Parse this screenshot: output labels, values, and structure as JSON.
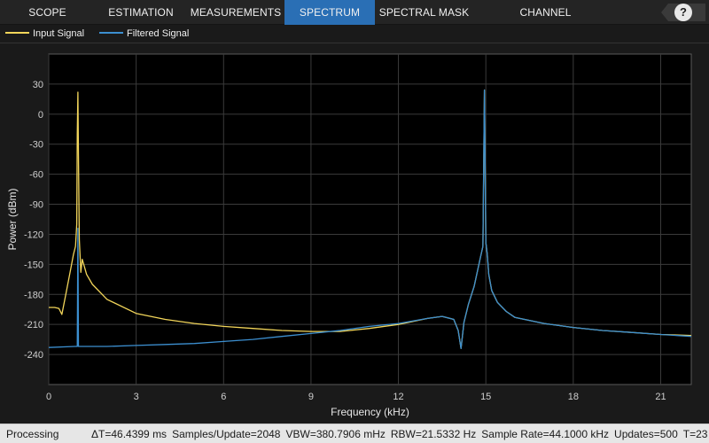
{
  "toolstrip": {
    "tabs": [
      {
        "label": "SCOPE",
        "active": false
      },
      {
        "label": "ESTIMATION",
        "active": false
      },
      {
        "label": "MEASUREMENTS",
        "active": false
      },
      {
        "label": "SPECTRUM",
        "active": true
      },
      {
        "label": "SPECTRAL MASK",
        "active": false
      },
      {
        "label": "CHANNEL MEASUREMENTS",
        "active": false
      }
    ],
    "help_label": "?",
    "active_tab_color": "#2a6fb5"
  },
  "legend": {
    "items": [
      {
        "label": "Input Signal",
        "color": "#f2d55a"
      },
      {
        "label": "Filtered Signal",
        "color": "#3c8fd0"
      }
    ]
  },
  "chart_data": {
    "type": "line",
    "xlabel": "Frequency (kHz)",
    "ylabel": "Power (dBm)",
    "xlim": [
      0,
      22.05
    ],
    "ylim": [
      -270,
      60
    ],
    "xticks": [
      0,
      3,
      6,
      9,
      12,
      15,
      18,
      21
    ],
    "yticks": [
      30,
      0,
      -30,
      -60,
      -90,
      -120,
      -150,
      -180,
      -210,
      -240
    ],
    "grid": true,
    "background": "#000000",
    "series": [
      {
        "name": "Input Signal",
        "color": "#f2d55a",
        "x": [
          0,
          0.2,
          0.35,
          0.45,
          0.6,
          0.75,
          0.85,
          0.92,
          0.96,
          0.98,
          1.0,
          1.02,
          1.05,
          1.1,
          1.15,
          1.2,
          1.3,
          1.5,
          2,
          3,
          4,
          5,
          6,
          7,
          8,
          9,
          10,
          11,
          12,
          13,
          13.5,
          13.9,
          14.05,
          14.15,
          14.25,
          14.4,
          14.6,
          14.8,
          14.9,
          14.95,
          15.0,
          15.05,
          15.1,
          15.2,
          15.4,
          15.7,
          16,
          17,
          18,
          19,
          20,
          21,
          22.05
        ],
        "y": [
          -193,
          -193,
          -194,
          -200,
          -178,
          -155,
          -140,
          -132,
          -110,
          -20,
          22,
          -40,
          -125,
          -158,
          -145,
          -150,
          -160,
          -170,
          -185,
          -199,
          -205,
          -209,
          -212,
          -214,
          -216,
          -217,
          -217,
          -214,
          -210,
          -204,
          -202,
          -205,
          -216,
          -234,
          -208,
          -190,
          -172,
          -145,
          -132,
          24,
          -128,
          -140,
          -160,
          -176,
          -188,
          -197,
          -203,
          -209,
          -213,
          -216,
          -218,
          -220,
          -221
        ]
      },
      {
        "name": "Filtered Signal",
        "color": "#3c8fd0",
        "x": [
          0,
          0.9,
          0.98,
          1.0,
          1.02,
          1.05,
          1.1,
          2,
          3,
          4,
          5,
          6,
          7,
          8,
          9,
          10,
          11,
          12,
          13,
          13.5,
          13.9,
          14.05,
          14.15,
          14.25,
          14.4,
          14.6,
          14.8,
          14.9,
          14.95,
          15.0,
          15.05,
          15.1,
          15.2,
          15.4,
          15.7,
          16,
          17,
          18,
          19,
          20,
          21,
          22.05
        ],
        "y": [
          -233,
          -232,
          -232,
          -114,
          -232,
          -232,
          -232,
          -232,
          -231,
          -230,
          -229,
          -227,
          -225,
          -222,
          -219,
          -216,
          -212,
          -209,
          -204,
          -202,
          -205,
          -216,
          -234,
          -208,
          -190,
          -172,
          -145,
          -132,
          24,
          -128,
          -140,
          -160,
          -176,
          -188,
          -197,
          -203,
          -209,
          -213,
          -216,
          -218,
          -220,
          -222
        ]
      }
    ]
  },
  "statusbar": {
    "state": "Processing",
    "delta_t": "ΔT=46.4399 ms",
    "samples_per_update": "Samples/Update=2048",
    "vbw": "VBW=380.7906 mHz",
    "rbw": "RBW=21.5332 Hz",
    "sample_rate": "Sample Rate=44.1000 kHz",
    "updates": "Updates=500",
    "t": "T=23"
  }
}
